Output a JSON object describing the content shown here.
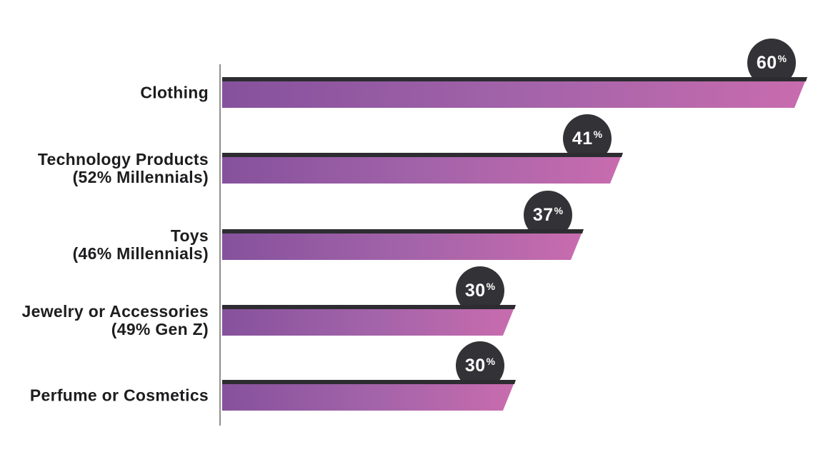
{
  "chart_data": {
    "type": "bar",
    "orientation": "horizontal",
    "title": "",
    "xlabel": "",
    "ylabel": "",
    "categories": [
      "Clothing",
      "Technology Products (52% Millennials)",
      "Toys (46% Millennials)",
      "Jewelry or Accessories (49% Gen Z)",
      "Perfume or Cosmetics"
    ],
    "values": [
      60,
      41,
      37,
      30,
      30
    ],
    "value_labels": [
      "60%",
      "41%",
      "37%",
      "30%",
      "30%"
    ],
    "xlim": [
      0,
      62
    ],
    "grid": false,
    "legend": false
  },
  "rows": [
    {
      "label_lines": [
        "Clothing"
      ],
      "value": 60,
      "badge_number": "60",
      "badge_percent": "%"
    },
    {
      "label_lines": [
        "Technology Products",
        "(52% Millennials)"
      ],
      "value": 41,
      "badge_number": "41",
      "badge_percent": "%"
    },
    {
      "label_lines": [
        "Toys",
        "(46% Millennials)"
      ],
      "value": 37,
      "badge_number": "37",
      "badge_percent": "%"
    },
    {
      "label_lines": [
        "Jewelry or Accessories",
        "(49% Gen Z)"
      ],
      "value": 30,
      "badge_number": "30",
      "badge_percent": "%"
    },
    {
      "label_lines": [
        "Perfume or Cosmetics"
      ],
      "value": 30,
      "badge_number": "30",
      "badge_percent": "%"
    }
  ],
  "colors": {
    "background": "#ffffff",
    "axis_line": "#8f8f8f",
    "bar_top_edge": "#2d2d31",
    "bar_gradient_start": "#86519c",
    "bar_gradient_mid": "#a263a9",
    "bar_gradient_end": "#c86cae",
    "badge_background": "#323237",
    "badge_text": "#ffffff",
    "label_text": "#1d1d1f"
  }
}
